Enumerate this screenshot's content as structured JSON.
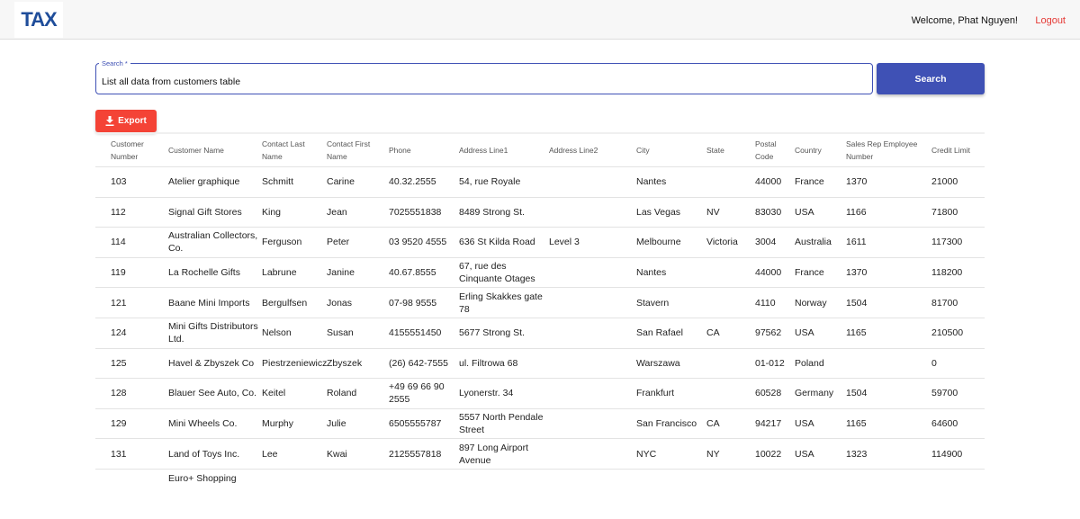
{
  "header": {
    "logo": "TAX",
    "welcome": "Welcome, Phat Nguyen!",
    "logout": "Logout"
  },
  "search": {
    "label": "Search *",
    "query": "List all data from customers table",
    "button": "Search"
  },
  "export": "Export",
  "table": {
    "columns": [
      "Customer Number",
      "Customer Name",
      "Contact Last Name",
      "Contact First Name",
      "Phone",
      "Address Line1",
      "Address Line2",
      "City",
      "State",
      "Postal Code",
      "Country",
      "Sales Rep Employee Number",
      "Credit Limit"
    ],
    "rows": [
      [
        "103",
        "Atelier graphique",
        "Schmitt",
        "Carine",
        "40.32.2555",
        "54, rue Royale",
        null,
        "Nantes",
        null,
        "44000",
        "France",
        "1370",
        "21000"
      ],
      [
        "112",
        "Signal Gift Stores",
        "King",
        "Jean",
        "7025551838",
        "8489 Strong St.",
        null,
        "Las Vegas",
        "NV",
        "83030",
        "USA",
        "1166",
        "71800"
      ],
      [
        "114",
        "Australian Collectors, Co.",
        "Ferguson",
        "Peter",
        "03 9520 4555",
        "636 St Kilda Road",
        "Level 3",
        "Melbourne",
        "Victoria",
        "3004",
        "Australia",
        "1611",
        "117300"
      ],
      [
        "119",
        "La Rochelle Gifts",
        "Labrune",
        "Janine",
        "40.67.8555",
        "67, rue des Cinquante Otages",
        null,
        "Nantes",
        null,
        "44000",
        "France",
        "1370",
        "118200"
      ],
      [
        "121",
        "Baane Mini Imports",
        "Bergulfsen",
        "Jonas",
        "07-98 9555",
        "Erling Skakkes gate 78",
        null,
        "Stavern",
        null,
        "4110",
        "Norway",
        "1504",
        "81700"
      ],
      [
        "124",
        "Mini Gifts Distributors Ltd.",
        "Nelson",
        "Susan",
        "4155551450",
        "5677 Strong St.",
        null,
        "San Rafael",
        "CA",
        "97562",
        "USA",
        "1165",
        "210500"
      ],
      [
        "125",
        "Havel & Zbyszek Co",
        "Piestrzeniewicz",
        "Zbyszek",
        "(26) 642-7555",
        "ul. Filtrowa 68",
        null,
        "Warszawa",
        null,
        "01-012",
        "Poland",
        null,
        "0"
      ],
      [
        "128",
        "Blauer See Auto, Co.",
        "Keitel",
        "Roland",
        "+49 69 66 90 2555",
        "Lyonerstr. 34",
        null,
        "Frankfurt",
        null,
        "60528",
        "Germany",
        "1504",
        "59700"
      ],
      [
        "129",
        "Mini Wheels Co.",
        "Murphy",
        "Julie",
        "6505555787",
        "5557 North Pendale Street",
        null,
        "San Francisco",
        "CA",
        "94217",
        "USA",
        "1165",
        "64600"
      ],
      [
        "131",
        "Land of Toys Inc.",
        "Lee",
        "Kwai",
        "2125557818",
        "897 Long Airport Avenue",
        null,
        "NYC",
        "NY",
        "10022",
        "USA",
        "1323",
        "114900"
      ]
    ],
    "partial_row": {
      "customer_name": "Euro+ Shopping"
    }
  }
}
